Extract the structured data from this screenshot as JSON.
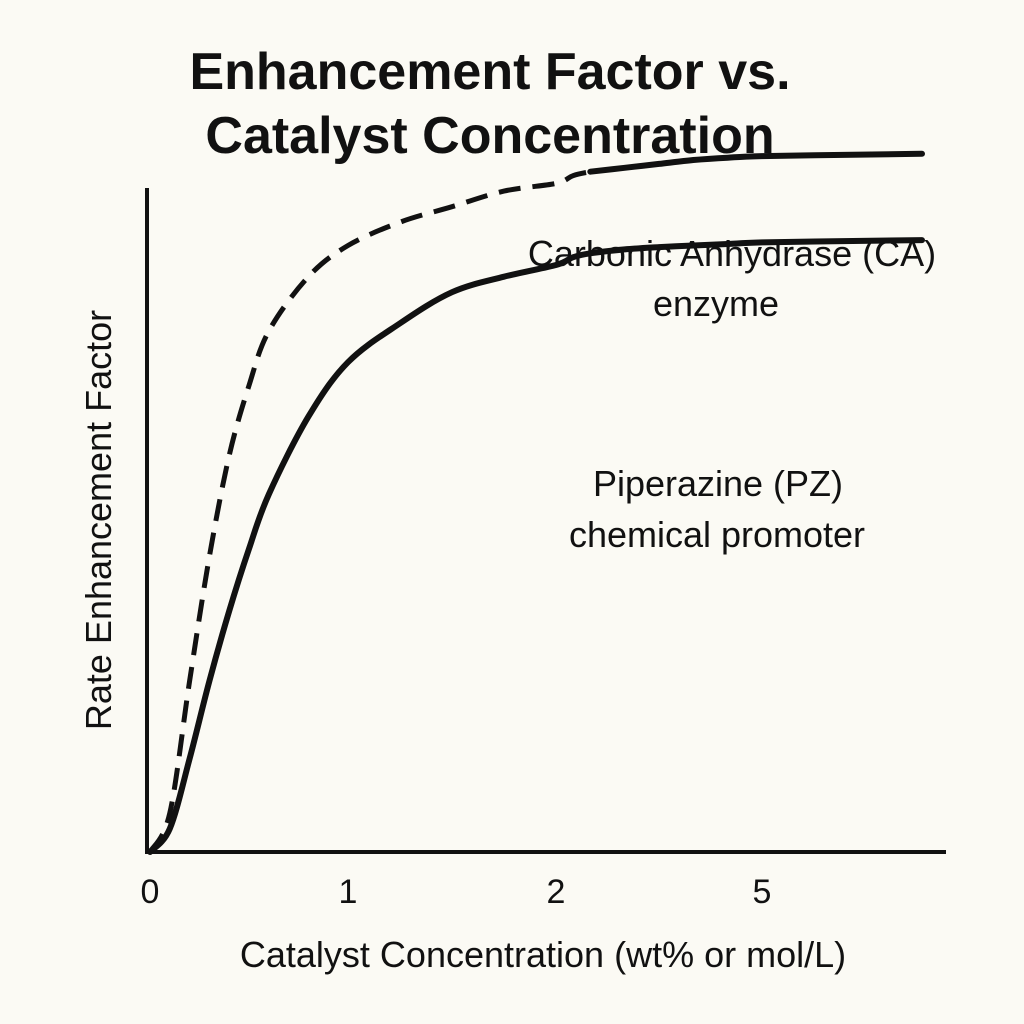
{
  "chart_data": {
    "type": "line",
    "title_lines": [
      "Enhancement Factor vs.",
      "Catalyst Concentration"
    ],
    "xlabel": "Catalyst Concentration (wt% or mol/L)",
    "ylabel": "Rate Enhancement Factor",
    "x_ticks": [
      "0",
      "1",
      "2",
      "5"
    ],
    "y_ticks": [],
    "grid": false,
    "legend": "none",
    "annotations": [
      {
        "lines": [
          "Carbonic Anhydrase (CA)",
          "enzyme"
        ]
      },
      {
        "lines": [
          "Piperazine (PZ)",
          "chemical promoter"
        ]
      }
    ],
    "series": [
      {
        "style": "dashed-then-solid",
        "x": [
          0,
          0.1,
          0.2,
          0.3,
          0.4,
          0.5,
          0.6,
          0.8,
          1.0,
          1.25,
          1.5,
          1.75,
          2.0,
          2.25,
          2.5,
          3.0,
          3.5,
          4.0,
          4.5,
          5.0,
          5.5,
          5.8
        ],
        "y": [
          0,
          0.05,
          0.22,
          0.38,
          0.51,
          0.6,
          0.67,
          0.74,
          0.78,
          0.81,
          0.83,
          0.85,
          0.86,
          0.87,
          0.875,
          0.88,
          0.885,
          0.89,
          0.893,
          0.895,
          0.897,
          0.898
        ]
      },
      {
        "style": "solid",
        "x": [
          0,
          0.1,
          0.2,
          0.3,
          0.4,
          0.5,
          0.6,
          0.8,
          1.0,
          1.25,
          1.5,
          1.75,
          2.0,
          2.25,
          2.5,
          3.0,
          3.5,
          4.0,
          4.5,
          5.0,
          5.5,
          5.8
        ],
        "y": [
          0,
          0.03,
          0.12,
          0.22,
          0.31,
          0.39,
          0.46,
          0.56,
          0.63,
          0.68,
          0.72,
          0.74,
          0.755,
          0.765,
          0.77,
          0.775,
          0.778,
          0.78,
          0.782,
          0.784,
          0.786,
          0.787
        ]
      }
    ]
  }
}
